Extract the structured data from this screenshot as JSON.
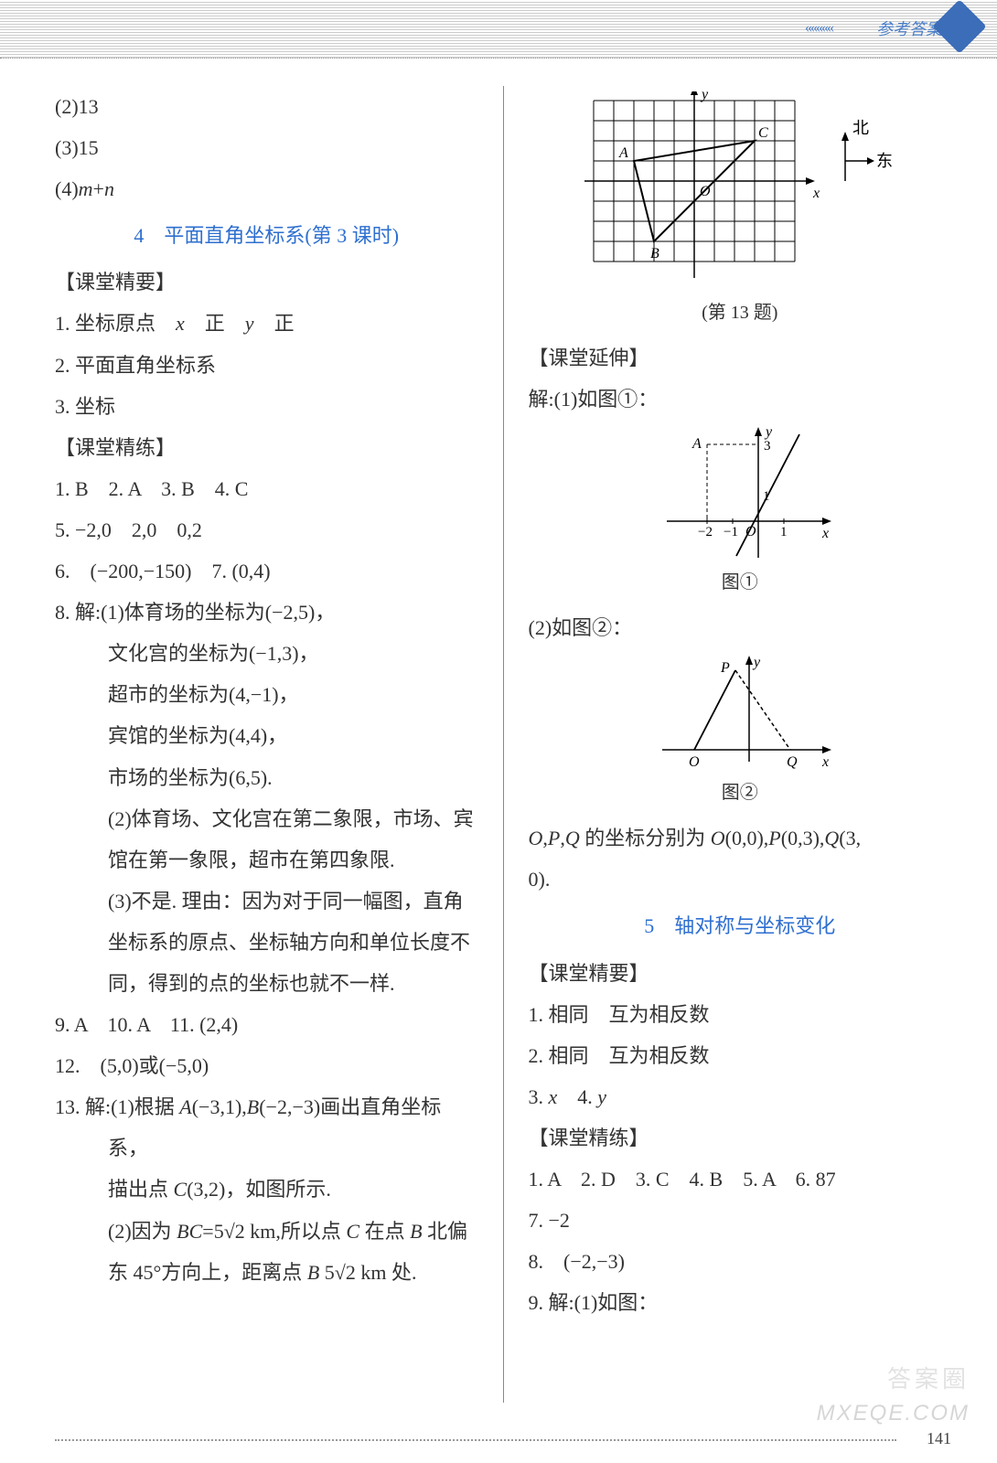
{
  "header": {
    "label": "参考答案",
    "chev": "«««««"
  },
  "left": {
    "l1": "(2)13",
    "l2": "(3)15",
    "l3_a": "(4)",
    "l3_b": "m",
    "l3_c": "+",
    "l3_d": "n",
    "title1": "4　平面直角坐标系(第 3 课时)",
    "h1": "【课堂精要】",
    "p1_a": "1. 坐标原点　",
    "p1_b": "x",
    "p1_c": "　正　",
    "p1_d": "y",
    "p1_e": "　正",
    "p2": "2. 平面直角坐标系",
    "p3": "3. 坐标",
    "h2": "【课堂精练】",
    "q1": "1. B　2. A　3. B　4. C",
    "q5": "5. −2,0　2,0　0,2",
    "q6": "6.　(−200,−150)　7. (0,4)",
    "q8a": "8. 解:(1)体育场的坐标为(−2,5)，",
    "q8b": "文化宫的坐标为(−1,3)，",
    "q8c": "超市的坐标为(4,−1)，",
    "q8d": "宾馆的坐标为(4,4)，",
    "q8e": "市场的坐标为(6,5).",
    "q8f": "(2)体育场、文化宫在第二象限，市场、宾馆在第一象限，超市在第四象限.",
    "q8g": "(3)不是. 理由：因为对于同一幅图，直角坐标系的原点、坐标轴方向和单位长度不同，得到的点的坐标也就不一样.",
    "q9": "9. A　10. A　11. (2,4)",
    "q12": "12.　(5,0)或(−5,0)",
    "q13a_1": "13. 解:(1)根据 ",
    "q13a_2": "A",
    "q13a_3": "(−3,1),",
    "q13a_4": "B",
    "q13a_5": "(−2,−3)画出直角坐标系，",
    "q13b_1": "描出点 ",
    "q13b_2": "C",
    "q13b_3": "(3,2)，如图所示.",
    "q13c_1": "(2)因为 ",
    "q13c_2": "BC",
    "q13c_3": "=5√2 km,所以点 ",
    "q13c_4": "C",
    "q13c_5": " 在点 ",
    "q13c_6": "B",
    "q13c_7": " 北偏东 45°方向上，距离点 ",
    "q13c_8": "B",
    "q13c_9": " 5√2 km 处."
  },
  "right": {
    "fig1_label": "(第 13 题)",
    "h3": "【课堂延伸】",
    "e1": "解:(1)如图①：",
    "fig2_label": "图①",
    "e2": "(2)如图②：",
    "fig3_label": "图②",
    "e3_1": "O",
    "e3_2": ",",
    "e3_3": "P",
    "e3_4": ",",
    "e3_5": "Q",
    "e3_6": " 的坐标分别为 ",
    "e3_7": "O",
    "e3_8": "(0,0),",
    "e3_9": "P",
    "e3_10": "(0,3),",
    "e3_11": "Q",
    "e3_12": "(3,",
    "e3_13": "0).",
    "title2": "5　轴对称与坐标变化",
    "h4": "【课堂精要】",
    "r1": "1. 相同　互为相反数",
    "r2": "2. 相同　互为相反数",
    "r3_1": "3. ",
    "r3_2": "x",
    "r3_3": "　4. ",
    "r3_4": "y",
    "h5": "【课堂精练】",
    "s1": "1. A　2. D　3. C　4. B　5. A　6. 87",
    "s7": "7. −2",
    "s8": "8.　(−2,−3)",
    "s9": "9. 解:(1)如图："
  },
  "fig1": {
    "grid": {
      "cols": 10,
      "rows": 8,
      "cell": 22,
      "stroke": "#000000"
    },
    "axis_color": "#000000",
    "labels": {
      "x": "x",
      "y": "y",
      "O": "O",
      "A": "A",
      "B": "B",
      "C": "C",
      "north": "北",
      "east": "东"
    },
    "points": {
      "A": [
        -3,
        1
      ],
      "B": [
        -2,
        -3
      ],
      "C": [
        3,
        2
      ]
    },
    "compass_stroke": "#000000"
  },
  "fig2": {
    "axis_color": "#000000",
    "labels": {
      "x": "x",
      "y": "y",
      "O": "O",
      "A": "A",
      "t1": "1",
      "t3": "3",
      "tn1": "−1",
      "tn2": "−2"
    },
    "A": [
      -2,
      3
    ]
  },
  "fig3": {
    "axis_color": "#000000",
    "labels": {
      "x": "x",
      "y": "y",
      "O": "O",
      "P": "P",
      "Q": "Q"
    }
  },
  "page": {
    "number": "141"
  },
  "watermark": {
    "cn": "答案圈",
    "en": "MXEQE.COM"
  }
}
